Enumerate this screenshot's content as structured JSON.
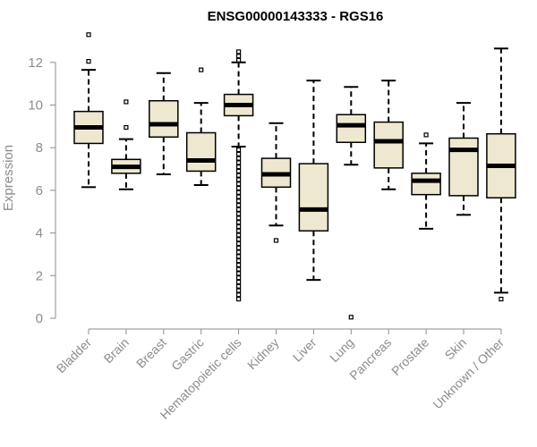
{
  "chart_data": {
    "type": "boxplot",
    "title": "ENSG00000143333 - RGS16",
    "ylabel": "Expression",
    "ylim": [
      0,
      12.5
    ],
    "yticks": [
      0,
      2,
      4,
      6,
      8,
      10,
      12
    ],
    "colors": {
      "box_fill": "#efe8d0",
      "box_stroke": "#000000",
      "axis": "#8c8c8c"
    },
    "categories": [
      "Bladder",
      "Brain",
      "Breast",
      "Gastric",
      "Hematopoietic cells",
      "Kidney",
      "Liver",
      "Lung",
      "Pancreas",
      "Prostate",
      "Skin",
      "Unknown / Other"
    ],
    "boxes": [
      {
        "label": "Bladder",
        "whisker_low": 6.15,
        "q1": 8.2,
        "median": 8.95,
        "q3": 9.7,
        "whisker_high": 11.65,
        "outliers": [
          12.05,
          13.3
        ]
      },
      {
        "label": "Brain",
        "whisker_low": 6.05,
        "q1": 6.8,
        "median": 7.1,
        "q3": 7.45,
        "whisker_high": 8.4,
        "outliers": [
          8.95,
          10.15
        ]
      },
      {
        "label": "Breast",
        "whisker_low": 6.75,
        "q1": 8.5,
        "median": 9.1,
        "q3": 10.2,
        "whisker_high": 11.5,
        "outliers": []
      },
      {
        "label": "Gastric",
        "whisker_low": 6.25,
        "q1": 6.9,
        "median": 7.4,
        "q3": 8.7,
        "whisker_high": 10.1,
        "outliers": [
          11.65
        ]
      },
      {
        "label": "Hematopoietic cells",
        "whisker_low": 8.05,
        "q1": 9.5,
        "median": 10.0,
        "q3": 10.5,
        "whisker_high": 12.0,
        "outliers": [
          0.9,
          1.1,
          1.3,
          1.5,
          1.7,
          1.9,
          2.1,
          2.3,
          2.5,
          2.7,
          2.9,
          3.1,
          3.3,
          3.5,
          3.7,
          3.9,
          4.1,
          4.3,
          4.5,
          4.7,
          4.9,
          5.1,
          5.3,
          5.5,
          5.7,
          5.9,
          6.1,
          6.3,
          6.5,
          6.7,
          6.9,
          7.1,
          7.3,
          7.5,
          7.7,
          7.9,
          12.1,
          12.3,
          12.5
        ]
      },
      {
        "label": "Kidney",
        "whisker_low": 4.35,
        "q1": 6.15,
        "median": 6.75,
        "q3": 7.5,
        "whisker_high": 9.15,
        "outliers": [
          3.65
        ]
      },
      {
        "label": "Liver",
        "whisker_low": 1.8,
        "q1": 4.1,
        "median": 5.1,
        "q3": 7.25,
        "whisker_high": 11.15,
        "outliers": []
      },
      {
        "label": "Lung",
        "whisker_low": 7.2,
        "q1": 8.25,
        "median": 9.05,
        "q3": 9.55,
        "whisker_high": 10.85,
        "outliers": [
          0.05
        ]
      },
      {
        "label": "Pancreas",
        "whisker_low": 6.05,
        "q1": 7.05,
        "median": 8.3,
        "q3": 9.2,
        "whisker_high": 11.15,
        "outliers": []
      },
      {
        "label": "Prostate",
        "whisker_low": 4.2,
        "q1": 5.8,
        "median": 6.45,
        "q3": 6.8,
        "whisker_high": 8.2,
        "outliers": [
          8.6
        ]
      },
      {
        "label": "Skin",
        "whisker_low": 4.85,
        "q1": 5.75,
        "median": 7.9,
        "q3": 8.45,
        "whisker_high": 10.1,
        "outliers": []
      },
      {
        "label": "Unknown / Other",
        "whisker_low": 1.2,
        "q1": 5.65,
        "median": 7.15,
        "q3": 8.65,
        "whisker_high": 12.65,
        "outliers": [
          0.9
        ]
      }
    ]
  }
}
